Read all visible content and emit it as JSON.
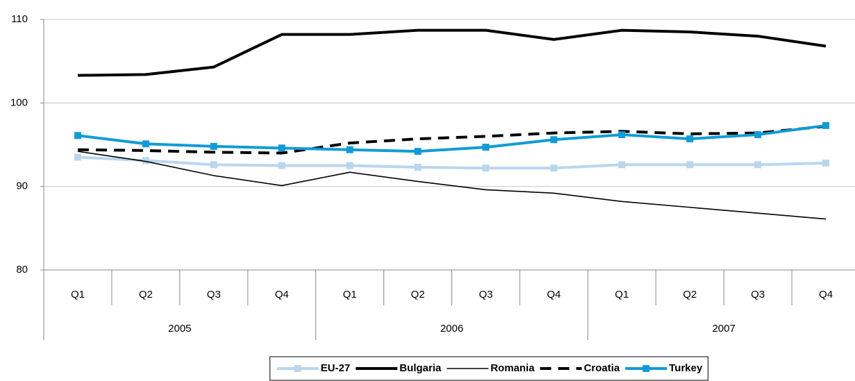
{
  "chart_data": {
    "type": "line",
    "categories": [
      "Q1",
      "Q2",
      "Q3",
      "Q4",
      "Q1",
      "Q2",
      "Q3",
      "Q4",
      "Q1",
      "Q2",
      "Q3",
      "Q4"
    ],
    "years": [
      "2005",
      "2006",
      "2007"
    ],
    "ylim": [
      80,
      110
    ],
    "yticks": [
      80,
      90,
      100,
      110
    ],
    "grid": true,
    "legend": "bottom",
    "series": [
      {
        "name": "EU-27",
        "color": "#b9d6ee",
        "style": "thick",
        "marker": "square",
        "values": [
          93.5,
          93.1,
          92.6,
          92.5,
          92.5,
          92.3,
          92.2,
          92.2,
          92.6,
          92.6,
          92.6,
          92.8
        ]
      },
      {
        "name": "Bulgaria",
        "color": "#000000",
        "style": "thick",
        "marker": "none",
        "values": [
          103.3,
          103.4,
          104.3,
          108.2,
          108.2,
          108.7,
          108.7,
          107.6,
          108.7,
          108.5,
          108.0,
          106.8
        ]
      },
      {
        "name": "Romania",
        "color": "#000000",
        "style": "thin",
        "marker": "none",
        "values": [
          94.2,
          93.0,
          91.3,
          90.1,
          91.7,
          90.6,
          89.6,
          89.2,
          88.2,
          87.5,
          86.8,
          86.1
        ]
      },
      {
        "name": "Croatia",
        "color": "#000000",
        "style": "dashed",
        "marker": "none",
        "values": [
          94.4,
          94.3,
          94.1,
          94.0,
          95.2,
          95.7,
          96.0,
          96.4,
          96.6,
          96.3,
          96.4,
          97.2
        ]
      },
      {
        "name": "Turkey",
        "color": "#119bd6",
        "style": "thick",
        "marker": "square",
        "values": [
          96.1,
          95.1,
          94.8,
          94.6,
          94.4,
          94.2,
          94.7,
          95.6,
          96.2,
          95.7,
          96.2,
          97.3
        ]
      }
    ]
  }
}
